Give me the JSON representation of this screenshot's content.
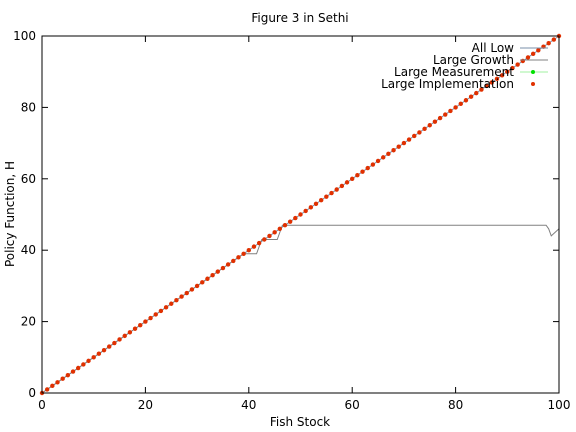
{
  "chart_data": {
    "type": "line",
    "title": "Figure 3 in Sethi",
    "xlabel": "Fish Stock",
    "ylabel": "Policy Function, H",
    "xlim": [
      0,
      100
    ],
    "ylim": [
      0,
      100
    ],
    "xticks": [
      "0",
      "20",
      "40",
      "60",
      "80",
      "100"
    ],
    "yticks": [
      "0",
      "20",
      "40",
      "60",
      "80",
      "100"
    ],
    "grid": false,
    "legend": "top-right",
    "colors": {
      "all_low": "#7a8fa8",
      "large_growth": "#808080",
      "large_measurement": "#00e000",
      "large_implementation": "#e03000"
    },
    "series": [
      {
        "name": "All Low",
        "style": "line",
        "x": [
          0,
          100
        ],
        "y": [
          0,
          100
        ]
      },
      {
        "name": "Large Growth",
        "style": "line",
        "x": [
          0,
          27,
          28,
          33,
          34,
          38,
          39,
          41.5,
          42.5,
          45,
          45.5,
          46.5,
          47,
          50,
          60,
          70,
          80,
          90,
          97.5,
          98,
          98.5,
          100
        ],
        "y": [
          0,
          27,
          28,
          33,
          34,
          38,
          39,
          39,
          43,
          43,
          43,
          47,
          47,
          47,
          47,
          47,
          47,
          47,
          47,
          46,
          44,
          46
        ]
      },
      {
        "name": "Large Measurement",
        "style": "points",
        "x_start": 0,
        "x_end": 100,
        "x_step": 1,
        "y_equals_x": true
      },
      {
        "name": "Large  Implementation",
        "style": "points",
        "x_start": 0,
        "x_end": 100,
        "x_step": 1,
        "y_equals_x": true
      }
    ]
  }
}
